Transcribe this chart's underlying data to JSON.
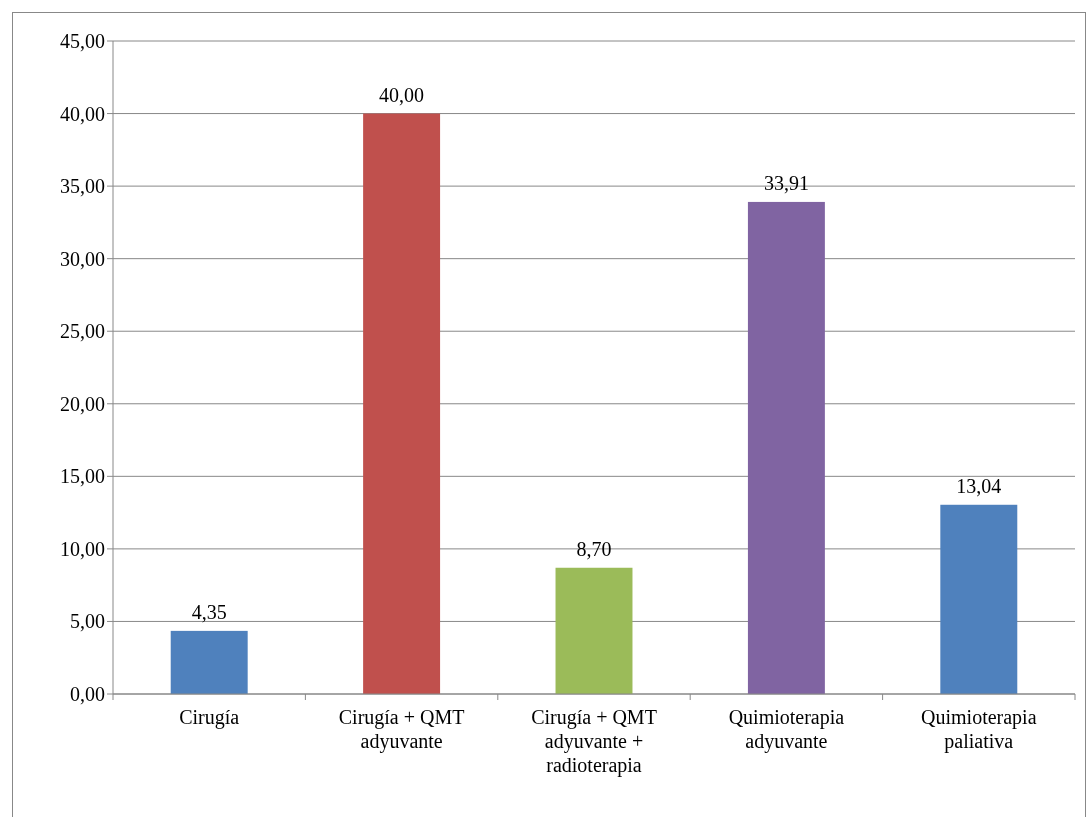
{
  "chart_data": {
    "type": "bar",
    "categories": [
      "Cirugía",
      "Cirugía + QMT\nadyuvante",
      "Cirugía + QMT\nadyuvante +\nradioterapia",
      "Quimioterapia\nadyuvante",
      "Quimioterapia\npaliativa"
    ],
    "values": [
      4.35,
      40.0,
      8.7,
      33.91,
      13.04
    ],
    "colors": [
      "#4f81bd",
      "#c0504d",
      "#9bbb59",
      "#8064a2",
      "#4f81bd"
    ],
    "value_labels": [
      "4,35",
      "40,00",
      "8,70",
      "33,91",
      "13,04"
    ],
    "ylim": [
      0,
      45
    ],
    "yticks": [
      {
        "value": 0,
        "label": "0,00"
      },
      {
        "value": 5,
        "label": "5,00"
      },
      {
        "value": 10,
        "label": "10,00"
      },
      {
        "value": 15,
        "label": "15,00"
      },
      {
        "value": 20,
        "label": "20,00"
      },
      {
        "value": 25,
        "label": "25,00"
      },
      {
        "value": 30,
        "label": "30,00"
      },
      {
        "value": 35,
        "label": "35,00"
      },
      {
        "value": 40,
        "label": "40,00"
      },
      {
        "value": 45,
        "label": "45,00"
      }
    ],
    "grid": "y"
  }
}
